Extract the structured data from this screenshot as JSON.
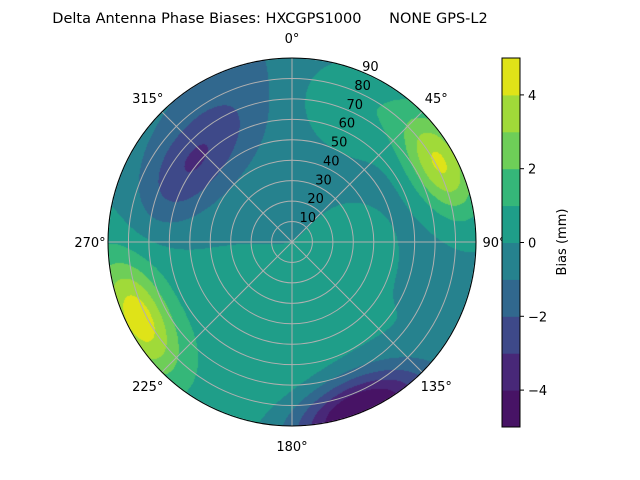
{
  "chart_data": {
    "type": "heatmap",
    "subtype": "polar-contour",
    "title": "Delta Antenna Phase Biases: HXCGPS1000      NONE GPS-L2",
    "angular_ticks": [
      "0°",
      "45°",
      "90°",
      "135°",
      "180°",
      "225°",
      "270°",
      "315°"
    ],
    "angular_tick_values": [
      0,
      45,
      90,
      135,
      180,
      225,
      270,
      315
    ],
    "radial_ticks": [
      "10",
      "20",
      "30",
      "40",
      "50",
      "60",
      "70",
      "80",
      "90"
    ],
    "radial_tick_values": [
      10,
      20,
      30,
      40,
      50,
      60,
      70,
      80,
      90
    ],
    "rlim": [
      0,
      90
    ],
    "colorbar": {
      "label": "Bias (mm)",
      "ticks": [
        "−4",
        "−2",
        "0",
        "2",
        "4"
      ],
      "tick_values": [
        -4,
        -2,
        0,
        2,
        4
      ],
      "levels": [
        -5,
        -4,
        -3,
        -2,
        -1,
        0,
        1,
        2,
        3,
        4,
        5
      ],
      "colors": [
        "#471365",
        "#482878",
        "#3e4989",
        "#31688e",
        "#26828e",
        "#1f9e89",
        "#35b779",
        "#6ece58",
        "#a0da39",
        "#dfe318"
      ]
    },
    "features": [
      {
        "azimuth": 62,
        "zenith": 82,
        "bias": 4.6,
        "spread_tan": 0.22,
        "spread_rad": 0.12
      },
      {
        "azimuth": 243,
        "zenith": 84,
        "bias": 4.3,
        "spread_tan": 0.24,
        "spread_rad": 0.12
      },
      {
        "azimuth": 158,
        "zenith": 90,
        "bias": -5.8,
        "spread_tan": 0.28,
        "spread_rad": 0.14
      },
      {
        "azimuth": 308,
        "zenith": 62,
        "bias": -2.6,
        "spread_tan": 0.32,
        "spread_rad": 0.14
      },
      {
        "azimuth": 25,
        "zenith": 75,
        "bias": 1.6,
        "spread_tan": 0.25,
        "spread_rad": 0.2
      },
      {
        "azimuth": 90,
        "zenith": 30,
        "bias": 1.0,
        "spread_tan": 0.15,
        "spread_rad": 0.15
      },
      {
        "azimuth": 200,
        "zenith": 45,
        "bias": 0.9,
        "spread_tan": 0.35,
        "spread_rad": 0.3
      },
      {
        "azimuth": 270,
        "zenith": 80,
        "bias": 1.0,
        "spread_tan": 0.25,
        "spread_rad": 0.2
      }
    ],
    "base_bias": -0.3,
    "grid": true
  }
}
